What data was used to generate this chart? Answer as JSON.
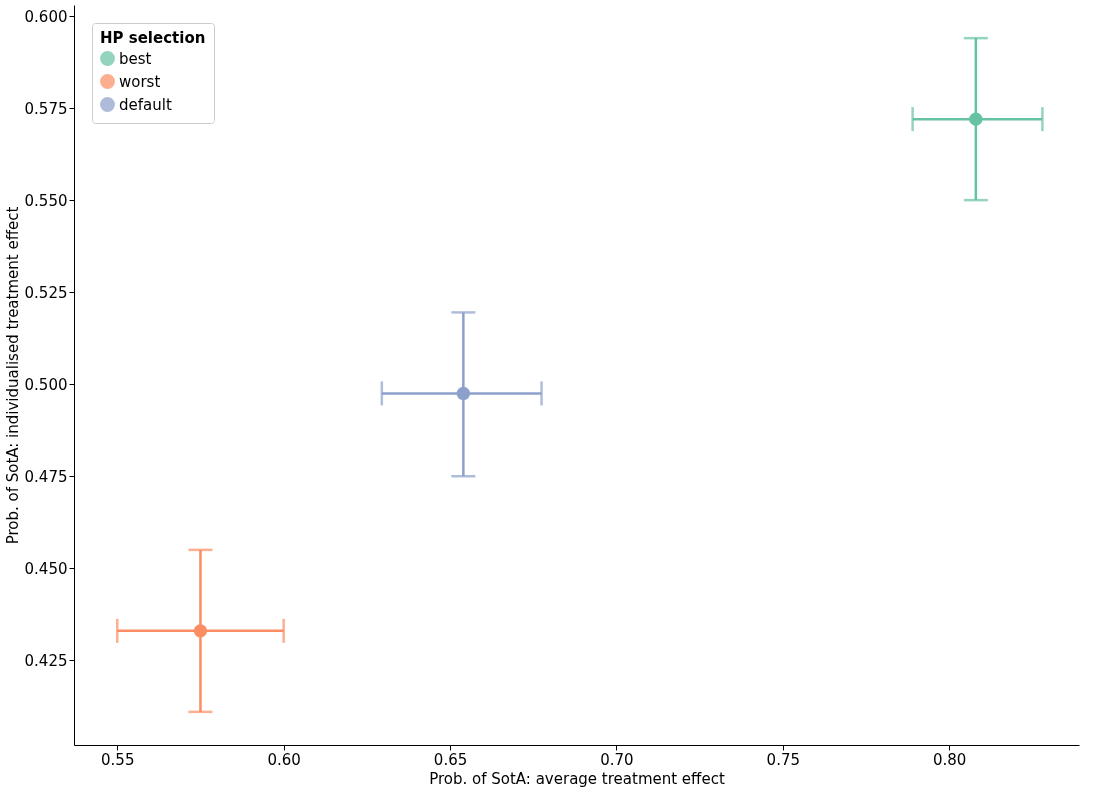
{
  "chart_data": {
    "type": "scatter",
    "xlabel": "Prob. of SotA: average treatment effect",
    "ylabel": "Prob. of SotA: individualised treatment effect",
    "legend_title": "HP selection",
    "series": [
      {
        "name": "best",
        "color": "#66c2a5",
        "x": [
          0.808
        ],
        "values": [
          0.572
        ],
        "errors": [
          [
            0.55,
            0.594
          ]
        ],
        "xerrors": [
          [
            0.789,
            0.828
          ]
        ]
      },
      {
        "name": "worst",
        "color": "#fc8d62",
        "x": [
          0.575
        ],
        "values": [
          0.433
        ],
        "errors": [
          [
            0.411,
            0.455
          ]
        ],
        "xerrors": [
          [
            0.55,
            0.6
          ]
        ]
      },
      {
        "name": "default",
        "color": "#8da0cb",
        "x": [
          0.654
        ],
        "values": [
          0.4975
        ],
        "errors": [
          [
            0.475,
            0.5195
          ]
        ],
        "xerrors": [
          [
            0.6295,
            0.6775
          ]
        ]
      }
    ],
    "xlim": [
      0.537,
      0.839
    ],
    "xticks": [
      0.55,
      {
        "value": 0.6,
        "label": "0.60"
      },
      0.65,
      {
        "value": 0.7,
        "label": "0.70"
      },
      0.75,
      {
        "value": 0.8,
        "label": "0.80"
      }
    ],
    "ylim": [
      0.402,
      0.603
    ],
    "yticks": [
      0.425,
      {
        "value": 0.45,
        "label": "0.450"
      },
      0.475,
      {
        "value": 0.5,
        "label": "0.500"
      },
      0.525,
      {
        "value": 0.55,
        "label": "0.550"
      },
      0.575,
      {
        "value": 0.6,
        "label": "0.600"
      }
    ],
    "grid": false,
    "legend": "top left",
    "marker": "circle"
  }
}
